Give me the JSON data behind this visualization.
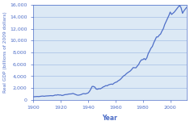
{
  "title": "",
  "xlabel": "Year",
  "ylabel": "Real GDP (billions of 2009 dollars)",
  "xlim": [
    1900,
    2012
  ],
  "ylim": [
    0,
    16000
  ],
  "yticks": [
    0,
    2000,
    4000,
    6000,
    8000,
    10000,
    12000,
    14000,
    16000
  ],
  "xticks": [
    1900,
    1920,
    1940,
    1960,
    1980,
    2000
  ],
  "line_color": "#4f6fc8",
  "bg_color": "#dce9f5",
  "grid_color": "#aec6e8",
  "years": [
    1900,
    1901,
    1902,
    1903,
    1904,
    1905,
    1906,
    1907,
    1908,
    1909,
    1910,
    1911,
    1912,
    1913,
    1914,
    1915,
    1916,
    1917,
    1918,
    1919,
    1920,
    1921,
    1922,
    1923,
    1924,
    1925,
    1926,
    1927,
    1928,
    1929,
    1930,
    1931,
    1932,
    1933,
    1934,
    1935,
    1936,
    1937,
    1938,
    1939,
    1940,
    1941,
    1942,
    1943,
    1944,
    1945,
    1946,
    1947,
    1948,
    1949,
    1950,
    1951,
    1952,
    1953,
    1954,
    1955,
    1956,
    1957,
    1958,
    1959,
    1960,
    1961,
    1962,
    1963,
    1964,
    1965,
    1966,
    1967,
    1968,
    1969,
    1970,
    1971,
    1972,
    1973,
    1974,
    1975,
    1976,
    1977,
    1978,
    1979,
    1980,
    1981,
    1982,
    1983,
    1984,
    1985,
    1986,
    1987,
    1988,
    1989,
    1990,
    1991,
    1992,
    1993,
    1994,
    1995,
    1996,
    1997,
    1998,
    1999,
    2000,
    2001,
    2002,
    2003,
    2004,
    2005,
    2006,
    2007,
    2008,
    2009,
    2010,
    2011,
    2012
  ],
  "gdp": [
    500,
    510,
    530,
    545,
    530,
    560,
    600,
    615,
    580,
    620,
    640,
    650,
    670,
    690,
    660,
    700,
    790,
    770,
    840,
    790,
    800,
    710,
    760,
    850,
    870,
    900,
    960,
    970,
    990,
    1060,
    970,
    880,
    780,
    760,
    810,
    870,
    990,
    1030,
    980,
    1060,
    1130,
    1380,
    1770,
    2240,
    2240,
    2120,
    1790,
    1770,
    1860,
    1840,
    1970,
    2150,
    2240,
    2380,
    2350,
    2510,
    2580,
    2640,
    2590,
    2790,
    2930,
    2990,
    3190,
    3320,
    3520,
    3780,
    4030,
    4150,
    4390,
    4570,
    4720,
    4880,
    5140,
    5430,
    5400,
    5390,
    5680,
    5970,
    6420,
    6730,
    6760,
    6950,
    6750,
    7100,
    7800,
    8230,
    8710,
    9000,
    9620,
    10100,
    10600,
    10600,
    10900,
    11100,
    11600,
    12000,
    12700,
    13200,
    13700,
    14200,
    14800,
    14400,
    14600,
    14800,
    15100,
    15400,
    15700,
    15900,
    15500,
    14600,
    15000,
    15300,
    15600
  ]
}
